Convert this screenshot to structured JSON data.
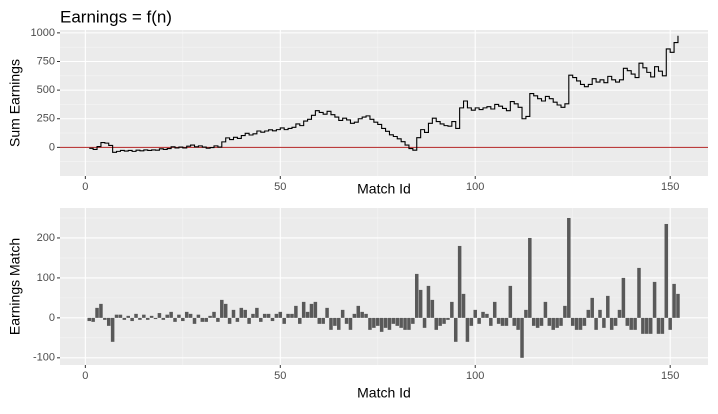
{
  "chart_data": [
    {
      "type": "step",
      "title": "Earnings = f(n)",
      "x_label": "Match Id",
      "y_label": "Sum Earnings",
      "color": "#000000",
      "reference_line": {
        "value": 0,
        "color": "#b22222"
      },
      "xlim": [
        -6.5,
        159.7
      ],
      "ylim": [
        -250,
        1025
      ],
      "xticks": [
        0,
        50,
        100,
        150
      ],
      "yticks": [
        0,
        250,
        500,
        750,
        1000
      ],
      "grid": true,
      "x": [
        1,
        2,
        3,
        4,
        5,
        6,
        7,
        8,
        9,
        10,
        11,
        12,
        13,
        14,
        15,
        16,
        17,
        18,
        19,
        20,
        21,
        22,
        23,
        24,
        25,
        26,
        27,
        28,
        29,
        30,
        31,
        32,
        33,
        34,
        35,
        36,
        37,
        38,
        39,
        40,
        41,
        42,
        43,
        44,
        45,
        46,
        47,
        48,
        49,
        50,
        51,
        52,
        53,
        54,
        55,
        56,
        57,
        58,
        59,
        60,
        61,
        62,
        63,
        64,
        65,
        66,
        67,
        68,
        69,
        70,
        71,
        72,
        73,
        74,
        75,
        76,
        77,
        78,
        79,
        80,
        81,
        82,
        83,
        84,
        85,
        86,
        87,
        88,
        89,
        90,
        91,
        92,
        93,
        94,
        95,
        96,
        97,
        98,
        99,
        100,
        101,
        102,
        103,
        104,
        105,
        106,
        107,
        108,
        109,
        110,
        111,
        112,
        113,
        114,
        115,
        116,
        117,
        118,
        119,
        120,
        121,
        122,
        123,
        124,
        125,
        126,
        127,
        128,
        129,
        130,
        131,
        132,
        133,
        134,
        135,
        136,
        137,
        138,
        139,
        140,
        141,
        142,
        143,
        144,
        145,
        146,
        147,
        148,
        149,
        150,
        151,
        152
      ],
      "values": [
        -8,
        -18,
        7,
        42,
        37,
        17,
        -43,
        -35,
        -27,
        -32,
        -27,
        -35,
        -25,
        -30,
        -22,
        -27,
        -22,
        -25,
        -13,
        -18,
        -10,
        5,
        -5,
        3,
        -5,
        10,
        20,
        5,
        13,
        3,
        -7,
        -2,
        13,
        3,
        48,
        83,
        68,
        88,
        78,
        103,
        123,
        108,
        118,
        143,
        133,
        143,
        153,
        145,
        155,
        170,
        155,
        165,
        175,
        205,
        190,
        230,
        245,
        280,
        320,
        305,
        290,
        315,
        285,
        265,
        235,
        255,
        240,
        210,
        220,
        250,
        265,
        275,
        245,
        220,
        200,
        165,
        140,
        110,
        95,
        75,
        50,
        20,
        -10,
        -25,
        85,
        155,
        130,
        210,
        255,
        225,
        205,
        190,
        185,
        225,
        165,
        345,
        405,
        345,
        325,
        345,
        330,
        345,
        355,
        335,
        375,
        360,
        340,
        320,
        400,
        380,
        350,
        250,
        270,
        470,
        450,
        425,
        405,
        445,
        425,
        395,
        370,
        350,
        380,
        630,
        610,
        580,
        550,
        530,
        550,
        600,
        570,
        590,
        565,
        620,
        590,
        570,
        590,
        690,
        670,
        640,
        610,
        735,
        695,
        655,
        615,
        705,
        665,
        625,
        860,
        830,
        915,
        975
      ]
    },
    {
      "type": "bar",
      "x_label": "Match Id",
      "y_label": "Earnings Match",
      "color": "#595959",
      "xlim": [
        -6.5,
        159.7
      ],
      "ylim": [
        -118,
        275
      ],
      "xticks": [
        0,
        50,
        100,
        150
      ],
      "yticks": [
        -100,
        0,
        100,
        200
      ],
      "grid": true,
      "x": [
        1,
        2,
        3,
        4,
        5,
        6,
        7,
        8,
        9,
        10,
        11,
        12,
        13,
        14,
        15,
        16,
        17,
        18,
        19,
        20,
        21,
        22,
        23,
        24,
        25,
        26,
        27,
        28,
        29,
        30,
        31,
        32,
        33,
        34,
        35,
        36,
        37,
        38,
        39,
        40,
        41,
        42,
        43,
        44,
        45,
        46,
        47,
        48,
        49,
        50,
        51,
        52,
        53,
        54,
        55,
        56,
        57,
        58,
        59,
        60,
        61,
        62,
        63,
        64,
        65,
        66,
        67,
        68,
        69,
        70,
        71,
        72,
        73,
        74,
        75,
        76,
        77,
        78,
        79,
        80,
        81,
        82,
        83,
        84,
        85,
        86,
        87,
        88,
        89,
        90,
        91,
        92,
        93,
        94,
        95,
        96,
        97,
        98,
        99,
        100,
        101,
        102,
        103,
        104,
        105,
        106,
        107,
        108,
        109,
        110,
        111,
        112,
        113,
        114,
        115,
        116,
        117,
        118,
        119,
        120,
        121,
        122,
        123,
        124,
        125,
        126,
        127,
        128,
        129,
        130,
        131,
        132,
        133,
        134,
        135,
        136,
        137,
        138,
        139,
        140,
        141,
        142,
        143,
        144,
        145,
        146,
        147,
        148,
        149,
        150,
        151,
        152
      ],
      "values": [
        -8,
        -10,
        25,
        35,
        -5,
        -20,
        -60,
        8,
        8,
        -5,
        5,
        -8,
        10,
        -5,
        8,
        -5,
        5,
        -3,
        12,
        -5,
        8,
        15,
        -10,
        8,
        -8,
        15,
        10,
        -15,
        8,
        -10,
        -10,
        5,
        15,
        -10,
        45,
        35,
        -15,
        20,
        -10,
        25,
        20,
        -15,
        10,
        25,
        -10,
        10,
        10,
        -8,
        10,
        15,
        -15,
        10,
        10,
        30,
        -15,
        40,
        15,
        35,
        40,
        -15,
        -15,
        25,
        -30,
        -20,
        -30,
        20,
        -15,
        -30,
        10,
        30,
        15,
        10,
        -30,
        -25,
        -20,
        -35,
        -25,
        -30,
        -15,
        -20,
        -25,
        -30,
        -30,
        -15,
        110,
        70,
        -25,
        80,
        45,
        -30,
        -20,
        -15,
        -5,
        40,
        -60,
        180,
        60,
        -60,
        -20,
        20,
        -15,
        15,
        10,
        -20,
        40,
        -15,
        -20,
        -20,
        80,
        -20,
        -30,
        -100,
        20,
        200,
        -20,
        -25,
        -20,
        40,
        -20,
        -30,
        -25,
        -20,
        30,
        250,
        -20,
        -30,
        -30,
        -20,
        20,
        50,
        -30,
        20,
        -25,
        55,
        -30,
        -20,
        20,
        100,
        -20,
        -30,
        -30,
        125,
        -40,
        -40,
        -40,
        90,
        -40,
        -40,
        235,
        -30,
        85,
        60
      ]
    }
  ]
}
